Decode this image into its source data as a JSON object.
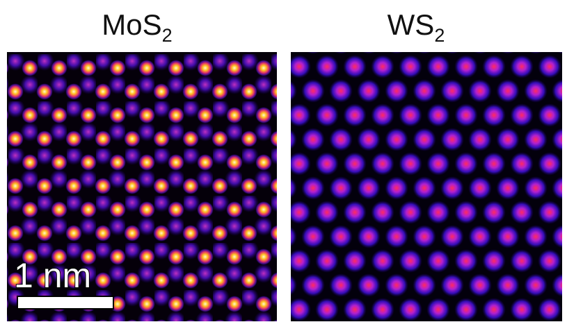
{
  "panels": [
    {
      "title": "MoS",
      "subscript": "2"
    },
    {
      "title": "WS",
      "subscript": "2"
    }
  ],
  "scale_bar": {
    "label": "1 nm"
  }
}
